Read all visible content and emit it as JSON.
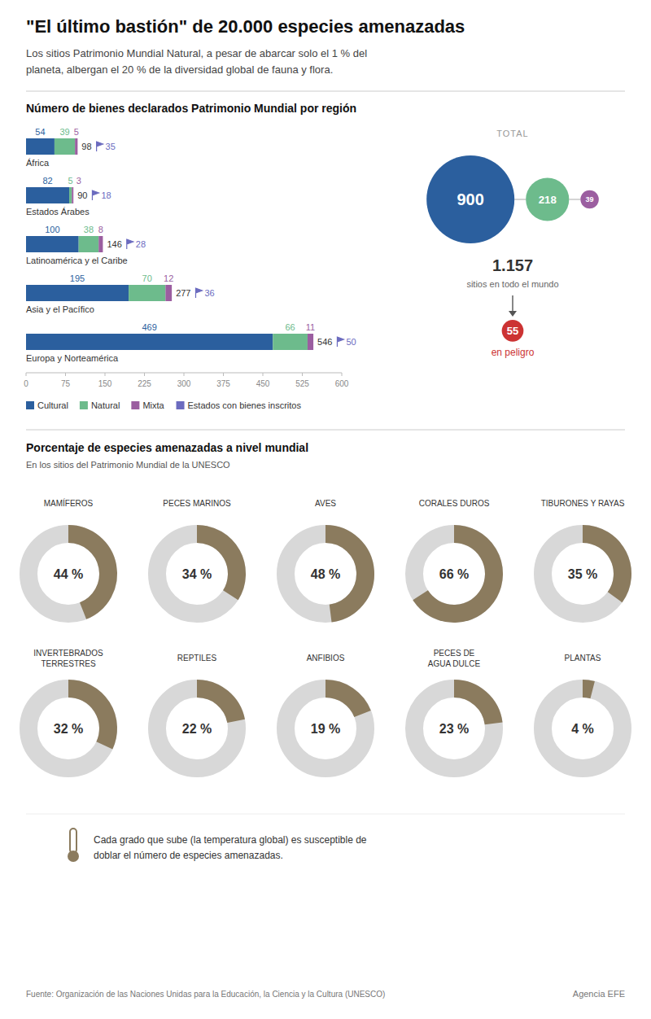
{
  "title": "\"El último bastión\" de 20.000 especies amenazadas",
  "subtitle": "Los sitios Patrimonio Mundial Natural, a pesar de abarcar solo el 1 % del\nplaneta, albergan el 20 % de la diversidad global de fauna y flora.",
  "footer_note": "Cada grado que sube (la temperatura global) es susceptible de\ndoblar el número de especies amenazadas.",
  "source": "Fuente: Organización de las Naciones Unidas para la Educación, la Ciencia y la Cultura (UNESCO)",
  "agency": "Agencia EFE",
  "chart_data": [
    {
      "type": "bar",
      "orientation": "horizontal",
      "stacked": true,
      "data_labels": true,
      "title": "Número de bienes declarados Patrimonio Mundial por región",
      "categories": [
        "África",
        "Estados Árabes",
        "Latinoamérica y el Caribe",
        "Asia y el Pacífico",
        "Europa y Norteamérica"
      ],
      "series": [
        {
          "name": "Cultural",
          "color": "#2B5F9E",
          "values": [
            54,
            82,
            100,
            195,
            469
          ]
        },
        {
          "name": "Natural",
          "color": "#6DBB8C",
          "values": [
            39,
            5,
            38,
            70,
            66
          ]
        },
        {
          "name": "Mixta",
          "color": "#9B5EA0",
          "values": [
            5,
            3,
            8,
            12,
            11
          ]
        }
      ],
      "totals": [
        98,
        90,
        146,
        277,
        546
      ],
      "states": {
        "name": "Estados con bienes inscritos",
        "color": "#6B6BBF",
        "values": [
          35,
          18,
          28,
          36,
          50
        ]
      },
      "xlim": [
        0,
        600
      ],
      "xticks": [
        0,
        75,
        150,
        225,
        300,
        375,
        450,
        525,
        600
      ],
      "grid": false,
      "legend": "lower left"
    },
    {
      "type": "bubble",
      "data_labels": true,
      "title": "TOTAL",
      "values": [
        900,
        218,
        39
      ],
      "colors": [
        "#2B5F9E",
        "#6DBB8C",
        "#9B5EA0"
      ],
      "total": {
        "value": 1157,
        "label": "1.157"
      },
      "total_sublabel": "sitios en todo el mundo",
      "danger": {
        "value": 55,
        "label": "en peligro",
        "color": "#CC3333"
      }
    },
    {
      "type": "donut",
      "data_labels": true,
      "title": "Porcentaje de especies amenazadas a nivel mundial",
      "subtitle": "En los sitios del Patrimonio Mundial de la UNESCO",
      "categories": [
        "MAMÍFEROS",
        "PECES MARINOS",
        "AVES",
        "CORALES DUROS",
        "TIBURONES Y RAYAS",
        "INVERTEBRADOS\nTERRESTRES",
        "REPTILES",
        "ANFIBIOS",
        "PECES DE\nAGUA DULCE",
        "PLANTAS"
      ],
      "values": [
        44,
        34,
        48,
        66,
        35,
        32,
        22,
        19,
        23,
        4
      ],
      "value_labels": [
        "44 %",
        "34 %",
        "48 %",
        "66 %",
        "35 %",
        "32 %",
        "22 %",
        "19 %",
        "23 %",
        "4 %"
      ],
      "color": "#8B7B5E",
      "track_color": "#D8D8D8"
    }
  ]
}
